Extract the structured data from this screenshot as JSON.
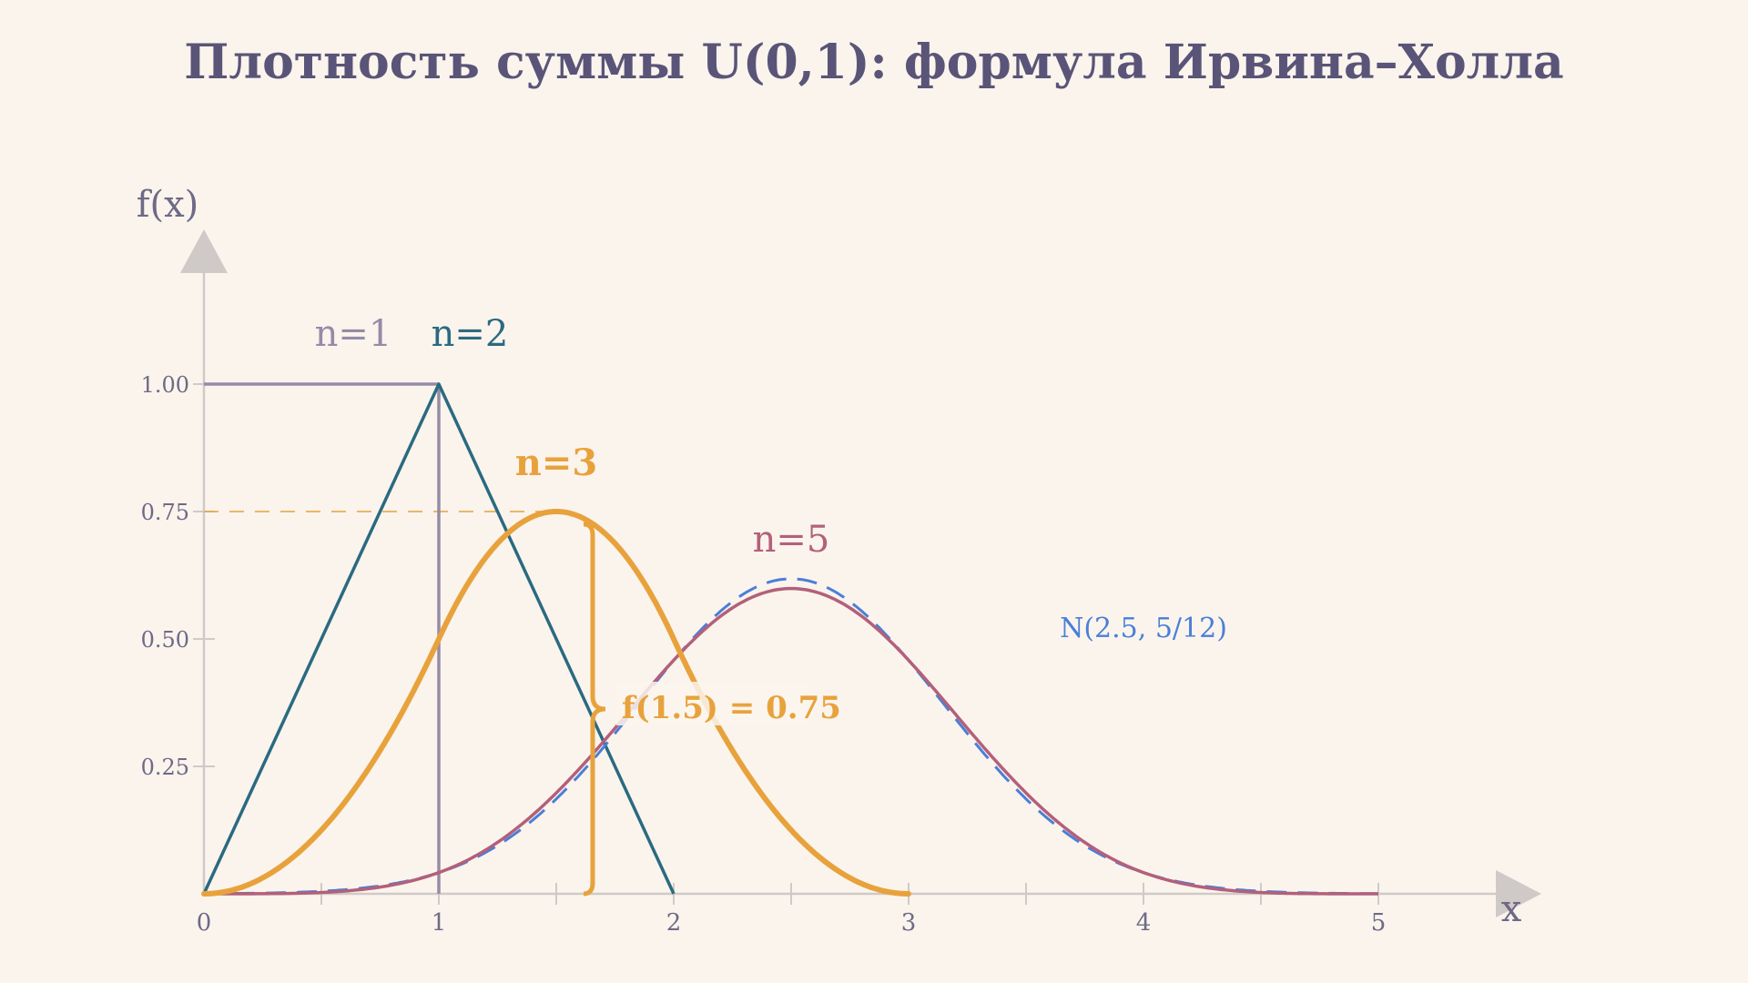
{
  "chart_data": {
    "type": "line",
    "title": "Плотность суммы U(0,1): формула Ирвина–Холла",
    "xlabel": "x",
    "ylabel": "f(x)",
    "xlim": [
      0,
      5.5
    ],
    "ylim": [
      0,
      1.2
    ],
    "x_ticks": [
      "0",
      "1",
      "2",
      "3",
      "4",
      "5"
    ],
    "y_ticks": [
      "0.25",
      "0.50",
      "0.75",
      "1.00"
    ],
    "series": [
      {
        "name": "n=1",
        "color": "#948ca6",
        "x": [
          0,
          1,
          1
        ],
        "y": [
          1.0,
          1.0,
          0
        ]
      },
      {
        "name": "n=2",
        "color": "#2b6a80",
        "x": [
          0,
          1,
          2
        ],
        "y": [
          0,
          1.0,
          0
        ]
      },
      {
        "name": "n=3",
        "color": "#e8a23c",
        "x": [
          0,
          0.25,
          0.5,
          0.75,
          1.0,
          1.25,
          1.5,
          1.75,
          2.0,
          2.25,
          2.5,
          2.75,
          3.0
        ],
        "y": [
          0,
          0.031,
          0.125,
          0.281,
          0.5,
          0.688,
          0.75,
          0.688,
          0.5,
          0.281,
          0.125,
          0.031,
          0
        ]
      },
      {
        "name": "n=5",
        "color": "#b3607a",
        "x": [
          0,
          0.5,
          1.0,
          1.5,
          2.0,
          2.5,
          3.0,
          3.5,
          4.0,
          4.5,
          5.0
        ],
        "y": [
          0,
          0.003,
          0.042,
          0.217,
          0.458,
          0.599,
          0.458,
          0.217,
          0.042,
          0.003,
          0
        ]
      },
      {
        "name": "N(2.5, 5/12)",
        "color": "#4a7fd8",
        "dashed": true,
        "mean": 2.5,
        "variance": 0.4167,
        "x_range": [
          0,
          5
        ]
      }
    ],
    "annotations": [
      {
        "text": "f(1.5) = 0.75",
        "x": 1.5,
        "y": 0.75,
        "color": "#e8a23c"
      }
    ]
  }
}
